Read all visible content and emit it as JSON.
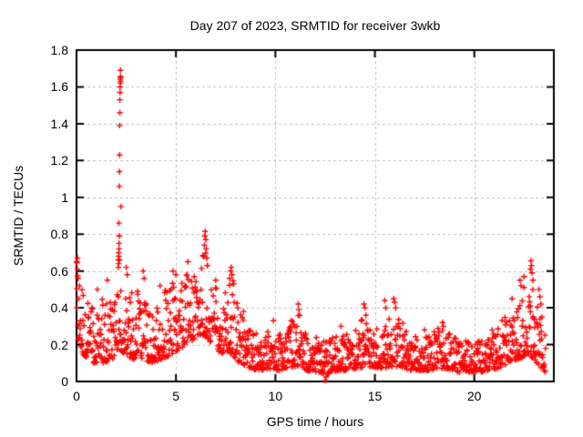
{
  "window": {
    "background": "#ffffff"
  },
  "chart_data": {
    "type": "scatter",
    "title": "Day 207 of 2023, SRMTID for receiver 3wkb",
    "xlabel": "GPS time / hours",
    "ylabel": "SRMTID / TECUs",
    "xlim": [
      0,
      24
    ],
    "ylim": [
      0,
      1.8
    ],
    "xticks": {
      "values": [
        0,
        5,
        10,
        15,
        20
      ],
      "labels": [
        "0",
        "5",
        "10",
        "15",
        "20"
      ]
    },
    "yticks": {
      "values": [
        0,
        0.2,
        0.4,
        0.6,
        0.8,
        1,
        1.2,
        1.4,
        1.6,
        1.8
      ],
      "labels": [
        "0",
        "0.2",
        "0.4",
        "0.6",
        "0.8",
        "1",
        "1.2",
        "1.4",
        "1.6",
        "1.8"
      ]
    },
    "grid": true,
    "grid_style": "dashed",
    "legend": "none",
    "marker": "plus",
    "marker_color": "#ff0000",
    "grid_color": "#bdbdbd",
    "axis_color": "#000000",
    "background": "#ffffff",
    "series_name": "SRMTID",
    "sampling": {
      "start_hour": 0,
      "end_hour": 23.58,
      "per_hour": 60,
      "seed": 2023207,
      "skew": 1.8,
      "x_jitter": 0.009
    },
    "band_profile": [
      [
        0.0,
        0.25,
        0.67
      ],
      [
        0.3,
        0.15,
        0.48
      ],
      [
        0.8,
        0.1,
        0.42
      ],
      [
        1.3,
        0.1,
        0.45
      ],
      [
        1.8,
        0.12,
        0.5
      ],
      [
        2.1,
        0.18,
        0.55
      ],
      [
        2.4,
        0.15,
        0.55
      ],
      [
        2.8,
        0.12,
        0.48
      ],
      [
        3.3,
        0.12,
        0.52
      ],
      [
        3.8,
        0.1,
        0.42
      ],
      [
        4.3,
        0.12,
        0.48
      ],
      [
        4.8,
        0.15,
        0.55
      ],
      [
        5.3,
        0.18,
        0.55
      ],
      [
        5.8,
        0.22,
        0.62
      ],
      [
        6.1,
        0.25,
        0.66
      ],
      [
        6.5,
        0.25,
        0.72
      ],
      [
        6.9,
        0.18,
        0.52
      ],
      [
        7.3,
        0.15,
        0.48
      ],
      [
        7.8,
        0.15,
        0.58
      ],
      [
        8.2,
        0.1,
        0.4
      ],
      [
        8.7,
        0.07,
        0.3
      ],
      [
        9.2,
        0.06,
        0.26
      ],
      [
        9.7,
        0.07,
        0.28
      ],
      [
        10.2,
        0.06,
        0.26
      ],
      [
        10.7,
        0.08,
        0.3
      ],
      [
        11.2,
        0.08,
        0.38
      ],
      [
        11.6,
        0.06,
        0.26
      ],
      [
        12.1,
        0.05,
        0.24
      ],
      [
        12.6,
        0.04,
        0.22
      ],
      [
        13.1,
        0.06,
        0.25
      ],
      [
        13.6,
        0.06,
        0.26
      ],
      [
        14.1,
        0.07,
        0.28
      ],
      [
        14.5,
        0.08,
        0.38
      ],
      [
        14.9,
        0.08,
        0.32
      ],
      [
        15.3,
        0.07,
        0.3
      ],
      [
        15.8,
        0.08,
        0.4
      ],
      [
        16.2,
        0.08,
        0.36
      ],
      [
        16.7,
        0.06,
        0.26
      ],
      [
        17.2,
        0.06,
        0.24
      ],
      [
        17.7,
        0.06,
        0.26
      ],
      [
        18.2,
        0.07,
        0.3
      ],
      [
        18.7,
        0.07,
        0.29
      ],
      [
        19.2,
        0.05,
        0.24
      ],
      [
        19.7,
        0.05,
        0.22
      ],
      [
        20.2,
        0.05,
        0.22
      ],
      [
        20.7,
        0.06,
        0.24
      ],
      [
        21.2,
        0.07,
        0.3
      ],
      [
        21.7,
        0.1,
        0.38
      ],
      [
        22.2,
        0.12,
        0.48
      ],
      [
        22.7,
        0.15,
        0.58
      ],
      [
        23.0,
        0.12,
        0.55
      ],
      [
        23.3,
        0.08,
        0.45
      ],
      [
        23.58,
        0.05,
        0.3
      ]
    ],
    "outlier_points": [
      [
        0.02,
        0.65
      ],
      [
        0.04,
        0.61
      ],
      [
        0.05,
        0.67
      ],
      [
        0.08,
        0.56
      ],
      [
        0.15,
        0.52
      ],
      [
        1.05,
        0.5
      ],
      [
        1.55,
        0.55
      ],
      [
        2.1,
        0.62
      ],
      [
        2.11,
        0.66
      ],
      [
        2.12,
        0.7
      ],
      [
        2.12,
        0.64
      ],
      [
        2.13,
        0.68
      ],
      [
        2.14,
        0.72
      ],
      [
        2.14,
        0.75
      ],
      [
        2.15,
        0.79
      ],
      [
        2.16,
        0.66
      ],
      [
        2.13,
        0.86
      ],
      [
        2.15,
        1.06
      ],
      [
        2.16,
        1.14
      ],
      [
        2.17,
        1.23
      ],
      [
        2.17,
        1.39
      ],
      [
        2.18,
        1.46
      ],
      [
        2.18,
        1.53
      ],
      [
        2.19,
        1.57
      ],
      [
        2.19,
        1.6
      ],
      [
        2.2,
        1.62
      ],
      [
        2.2,
        1.64
      ],
      [
        2.21,
        1.655
      ],
      [
        2.21,
        1.69
      ],
      [
        2.22,
        1.65
      ],
      [
        2.22,
        1.63
      ],
      [
        2.24,
        0.95
      ],
      [
        2.5,
        0.62
      ],
      [
        2.55,
        0.58
      ],
      [
        3.35,
        0.6
      ],
      [
        3.4,
        0.56
      ],
      [
        4.2,
        0.52
      ],
      [
        4.85,
        0.6
      ],
      [
        5.0,
        0.58
      ],
      [
        5.6,
        0.65
      ],
      [
        6.4,
        0.68
      ],
      [
        6.43,
        0.74
      ],
      [
        6.45,
        0.79
      ],
      [
        6.47,
        0.815
      ],
      [
        6.5,
        0.77
      ],
      [
        6.52,
        0.72
      ],
      [
        6.55,
        0.67
      ],
      [
        6.58,
        0.63
      ],
      [
        7.0,
        0.55
      ],
      [
        7.7,
        0.56
      ],
      [
        7.75,
        0.6
      ],
      [
        7.78,
        0.62
      ],
      [
        7.82,
        0.58
      ],
      [
        7.88,
        0.53
      ],
      [
        8.4,
        0.38
      ],
      [
        9.9,
        0.33
      ],
      [
        10.8,
        0.33
      ],
      [
        11.15,
        0.42
      ],
      [
        11.18,
        0.39
      ],
      [
        11.22,
        0.36
      ],
      [
        12.5,
        0.005
      ],
      [
        12.55,
        0.025
      ],
      [
        13.3,
        0.3
      ],
      [
        14.45,
        0.42
      ],
      [
        14.5,
        0.4
      ],
      [
        14.55,
        0.36
      ],
      [
        15.5,
        0.44
      ],
      [
        15.55,
        0.4
      ],
      [
        15.95,
        0.45
      ],
      [
        16.0,
        0.43
      ],
      [
        16.05,
        0.4
      ],
      [
        17.5,
        0.28
      ],
      [
        18.4,
        0.32
      ],
      [
        18.45,
        0.3
      ],
      [
        20.9,
        0.28
      ],
      [
        21.9,
        0.45
      ],
      [
        22.3,
        0.55
      ],
      [
        22.35,
        0.52
      ],
      [
        22.5,
        0.57
      ],
      [
        22.82,
        0.61
      ],
      [
        22.85,
        0.655
      ],
      [
        22.88,
        0.63
      ],
      [
        22.9,
        0.59
      ],
      [
        22.95,
        0.55
      ],
      [
        23.25,
        0.5
      ],
      [
        23.3,
        0.46
      ],
      [
        23.35,
        0.42
      ],
      [
        23.4,
        0.35
      ]
    ]
  }
}
